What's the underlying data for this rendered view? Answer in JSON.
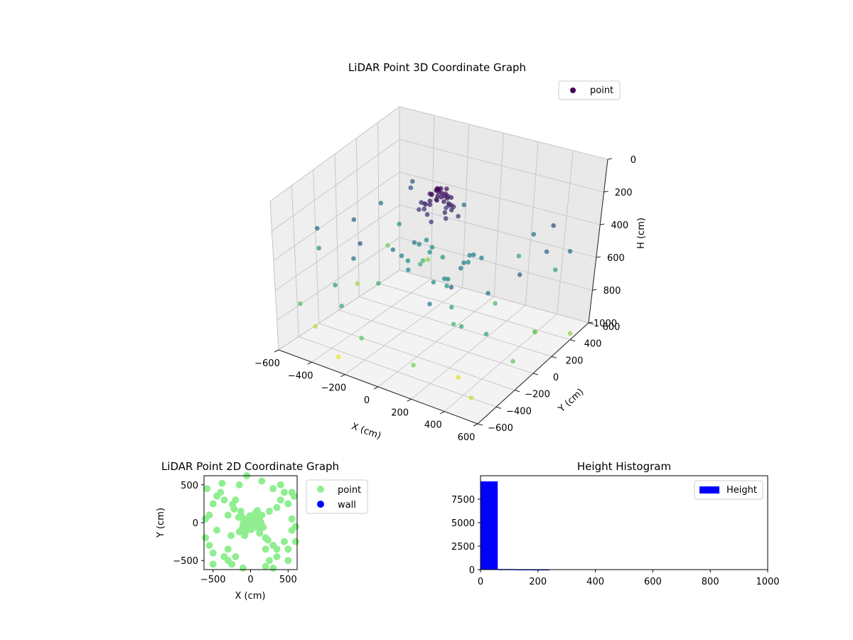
{
  "chart_data": [
    {
      "type": "scatter3d",
      "title": "LiDAR Point 3D Coordinate Graph",
      "xlabel": "X (cm)",
      "ylabel": "Y (cm)",
      "zlabel": "H (cm)",
      "xlim": [
        -600,
        600
      ],
      "ylim": [
        -600,
        600
      ],
      "zlim": [
        0,
        1000
      ],
      "z_inverted": true,
      "x_ticks": [
        "−600",
        "−400",
        "−200",
        "0",
        "200",
        "400",
        "600"
      ],
      "y_ticks": [
        "−600",
        "−400",
        "−200",
        "0",
        "200",
        "400",
        "600"
      ],
      "z_ticks": [
        "0",
        "200",
        "400",
        "600",
        "800",
        "1000"
      ],
      "grid": true,
      "legend": [
        "point"
      ],
      "legend_position": "top-right",
      "colormap": "viridis",
      "series": [
        {
          "name": "point",
          "points": [
            [
              0,
              0,
              40
            ],
            [
              30,
              20,
              60
            ],
            [
              -20,
              10,
              55
            ],
            [
              50,
              -30,
              80
            ],
            [
              -40,
              -20,
              70
            ],
            [
              10,
              40,
              90
            ],
            [
              -60,
              30,
              100
            ],
            [
              70,
              10,
              110
            ],
            [
              20,
              -50,
              75
            ],
            [
              -30,
              50,
              85
            ],
            [
              90,
              -20,
              120
            ],
            [
              -80,
              -40,
              130
            ],
            [
              40,
              60,
              95
            ],
            [
              -10,
              -70,
              105
            ],
            [
              60,
              50,
              140
            ],
            [
              -50,
              -60,
              150
            ],
            [
              0,
              80,
              65
            ],
            [
              80,
              -60,
              160
            ],
            [
              -90,
              20,
              170
            ],
            [
              25,
              -10,
              45
            ],
            [
              -15,
              25,
              50
            ],
            [
              35,
              35,
              78
            ],
            [
              -45,
              5,
              88
            ],
            [
              15,
              -35,
              58
            ],
            [
              55,
              -5,
              68
            ],
            [
              -25,
              -45,
              98
            ],
            [
              5,
              15,
              35
            ],
            [
              -5,
              -5,
              30
            ],
            [
              45,
              25,
              115
            ],
            [
              -35,
              35,
              125
            ],
            [
              65,
              -45,
              135
            ],
            [
              -75,
              -15,
              145
            ],
            [
              20,
              70,
              155
            ],
            [
              -20,
              -80,
              165
            ],
            [
              100,
              30,
              175
            ],
            [
              -100,
              -30,
              185
            ],
            [
              10,
              -90,
              195
            ],
            [
              -10,
              90,
              190
            ],
            [
              30,
              -25,
              62
            ],
            [
              -40,
              45,
              72
            ],
            [
              150,
              100,
              420
            ],
            [
              -150,
              -120,
              450
            ],
            [
              120,
              -140,
              480
            ],
            [
              -130,
              150,
              500
            ],
            [
              170,
              -60,
              430
            ],
            [
              -160,
              70,
              460
            ],
            [
              90,
              160,
              470
            ],
            [
              -80,
              -170,
              490
            ],
            [
              140,
              20,
              440
            ],
            [
              -140,
              -10,
              410
            ],
            [
              60,
              -150,
              520
            ],
            [
              -60,
              140,
              530
            ],
            [
              110,
              -100,
              545
            ],
            [
              -120,
              110,
              510
            ],
            [
              180,
              130,
              440
            ],
            [
              -190,
              -140,
              420
            ],
            [
              160,
              -170,
              455
            ],
            [
              -170,
              160,
              475
            ],
            [
              130,
              80,
              465
            ],
            [
              -130,
              -90,
              485
            ],
            [
              200,
              -200,
              600
            ],
            [
              -220,
              180,
              650
            ],
            [
              250,
              150,
              700
            ],
            [
              -260,
              -170,
              640
            ],
            [
              230,
              -230,
              680
            ],
            [
              -240,
              240,
              660
            ],
            [
              -500,
              -400,
              900
            ],
            [
              300,
              -300,
              950
            ],
            [
              500,
              -500,
              920
            ],
            [
              -300,
              -500,
              970
            ],
            [
              400,
              300,
              880
            ],
            [
              -550,
              100,
              860
            ],
            [
              -400,
              400,
              300
            ],
            [
              450,
              400,
              250
            ],
            [
              -450,
              -100,
              350
            ],
            [
              350,
              -450,
              320
            ],
            [
              -350,
              300,
              280
            ],
            [
              500,
              250,
              330
            ],
            [
              -200,
              -450,
              260
            ],
            [
              550,
              -100,
              310
            ],
            [
              -500,
              250,
              410
            ],
            [
              300,
              450,
              380
            ],
            [
              -300,
              -350,
              430
            ],
            [
              450,
              -250,
              400
            ],
            [
              -550,
              -300,
              360
            ],
            [
              250,
              -500,
              440
            ],
            [
              -150,
              500,
              390
            ],
            [
              550,
              400,
              370
            ],
            [
              -450,
              350,
              560
            ],
            [
              350,
              -350,
              600
            ],
            [
              -250,
              -550,
              620
            ],
            [
              400,
              500,
              580
            ],
            [
              -600,
              -200,
              540
            ],
            [
              150,
              550,
              610
            ],
            [
              -350,
              -450,
              570
            ],
            [
              500,
              -350,
              590
            ],
            [
              -500,
              -550,
              700
            ],
            [
              550,
              50,
              720
            ],
            [
              -100,
              -600,
              740
            ],
            [
              600,
              -250,
              760
            ],
            [
              -580,
              450,
              780
            ],
            [
              200,
              -580,
              800
            ],
            [
              -380,
              520,
              820
            ],
            [
              580,
              350,
              840
            ]
          ]
        }
      ]
    },
    {
      "type": "scatter",
      "title": "LiDAR Point 2D Coordinate Graph",
      "xlabel": "X (cm)",
      "ylabel": "Y (cm)",
      "xlim": [
        -620,
        620
      ],
      "ylim": [
        -620,
        620
      ],
      "x_ticks": [
        "−500",
        "0",
        "500"
      ],
      "y_ticks": [
        "500",
        "0",
        "−500"
      ],
      "legend": [
        "point",
        "wall"
      ],
      "legend_position": "outside-right",
      "series": [
        {
          "name": "point",
          "color": "#90ee90",
          "points": [
            [
              0,
              0
            ],
            [
              30,
              20
            ],
            [
              -20,
              10
            ],
            [
              50,
              -30
            ],
            [
              -40,
              -20
            ],
            [
              10,
              40
            ],
            [
              -60,
              30
            ],
            [
              70,
              10
            ],
            [
              20,
              -50
            ],
            [
              -30,
              50
            ],
            [
              90,
              -20
            ],
            [
              -80,
              -40
            ],
            [
              40,
              60
            ],
            [
              -10,
              -70
            ],
            [
              60,
              50
            ],
            [
              -50,
              -60
            ],
            [
              0,
              80
            ],
            [
              80,
              -60
            ],
            [
              -90,
              20
            ],
            [
              25,
              -10
            ],
            [
              -15,
              25
            ],
            [
              35,
              35
            ],
            [
              -45,
              5
            ],
            [
              15,
              -35
            ],
            [
              55,
              -5
            ],
            [
              -25,
              -45
            ],
            [
              5,
              15
            ],
            [
              100,
              30
            ],
            [
              -100,
              -30
            ],
            [
              10,
              -90
            ],
            [
              -10,
              90
            ],
            [
              30,
              -25
            ],
            [
              -40,
              45
            ],
            [
              120,
              60
            ],
            [
              -110,
              70
            ],
            [
              130,
              -80
            ],
            [
              -120,
              -90
            ],
            [
              60,
              120
            ],
            [
              -70,
              -130
            ],
            [
              140,
              0
            ],
            [
              150,
              100
            ],
            [
              -150,
              -120
            ],
            [
              120,
              -140
            ],
            [
              -130,
              150
            ],
            [
              170,
              -60
            ],
            [
              -160,
              70
            ],
            [
              90,
              160
            ],
            [
              -80,
              -170
            ],
            [
              200,
              -200
            ],
            [
              -220,
              180
            ],
            [
              250,
              150
            ],
            [
              -260,
              -170
            ],
            [
              230,
              -230
            ],
            [
              -240,
              240
            ],
            [
              -500,
              -400
            ],
            [
              300,
              -300
            ],
            [
              500,
              -500
            ],
            [
              -300,
              -500
            ],
            [
              400,
              300
            ],
            [
              -550,
              100
            ],
            [
              -400,
              400
            ],
            [
              450,
              400
            ],
            [
              -450,
              -100
            ],
            [
              350,
              -450
            ],
            [
              -350,
              300
            ],
            [
              500,
              250
            ],
            [
              -200,
              -450
            ],
            [
              550,
              -100
            ],
            [
              -500,
              250
            ],
            [
              300,
              450
            ],
            [
              -300,
              -350
            ],
            [
              450,
              -250
            ],
            [
              -550,
              -300
            ],
            [
              250,
              -500
            ],
            [
              -150,
              500
            ],
            [
              550,
              400
            ],
            [
              -450,
              350
            ],
            [
              350,
              -350
            ],
            [
              -250,
              -550
            ],
            [
              400,
              500
            ],
            [
              -600,
              -200
            ],
            [
              150,
              550
            ],
            [
              -350,
              -450
            ],
            [
              500,
              -350
            ],
            [
              -500,
              -550
            ],
            [
              550,
              50
            ],
            [
              -100,
              -600
            ],
            [
              600,
              -250
            ],
            [
              -580,
              450
            ],
            [
              200,
              -580
            ],
            [
              -380,
              520
            ],
            [
              580,
              350
            ],
            [
              -50,
              620
            ],
            [
              300,
              -600
            ],
            [
              -600,
              50
            ],
            [
              600,
              -50
            ],
            [
              -200,
              300
            ],
            [
              200,
              -350
            ],
            [
              -300,
              100
            ],
            [
              350,
              200
            ]
          ]
        },
        {
          "name": "wall",
          "color": "#0000ff",
          "points": []
        }
      ]
    },
    {
      "type": "bar",
      "title": "Height Histogram",
      "xlim": [
        0,
        1000
      ],
      "ylim": [
        0,
        10000
      ],
      "x_ticks": [
        "0",
        "200",
        "400",
        "600",
        "800",
        "1000"
      ],
      "y_ticks": [
        "0",
        "2500",
        "5000",
        "7500"
      ],
      "legend": [
        "Height"
      ],
      "legend_position": "top-right",
      "series": [
        {
          "name": "Height",
          "color": "#0000ff",
          "bins": [
            {
              "start": 0,
              "end": 60,
              "value": 9400
            },
            {
              "start": 60,
              "end": 120,
              "value": 60
            },
            {
              "start": 120,
              "end": 180,
              "value": 40
            },
            {
              "start": 180,
              "end": 240,
              "value": 30
            }
          ]
        }
      ]
    }
  ]
}
